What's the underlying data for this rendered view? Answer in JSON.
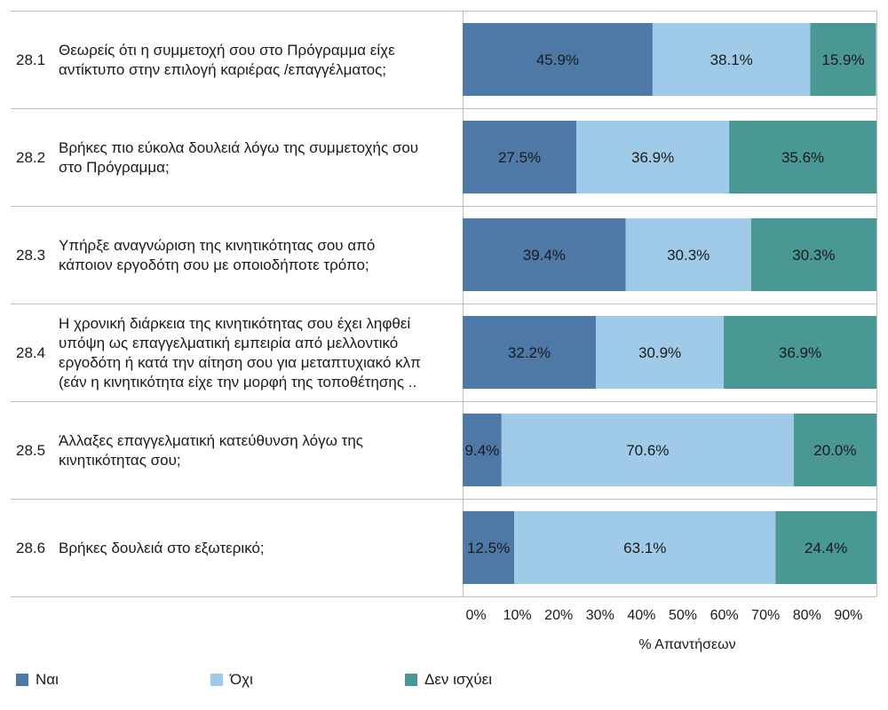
{
  "chart_data": {
    "type": "bar",
    "orientation": "horizontal",
    "stacked": true,
    "xlabel": "% Απαντήσεων",
    "xlim": [
      0,
      100
    ],
    "x_ticks": [
      "0%",
      "10%",
      "20%",
      "30%",
      "40%",
      "50%",
      "60%",
      "70%",
      "80%",
      "90%"
    ],
    "categories": [
      {
        "id": "28.1",
        "lines": [
          "Θεωρείς ότι η συμμετοχή σου στο Πρόγραμμα είχε",
          "αντίκτυπο στην επιλογή καριέρας /επαγγέλματος;"
        ]
      },
      {
        "id": "28.2",
        "lines": [
          "Βρήκες πιο εύκολα δουλειά λόγω της συμμετοχής σου",
          "στο Πρόγραμμα;"
        ]
      },
      {
        "id": "28.3",
        "lines": [
          "Υπήρξε αναγνώριση της κινητικότητας σου από",
          "κάποιον εργοδότη σου με οποιοδήποτε τρόπο;"
        ]
      },
      {
        "id": "28.4",
        "lines": [
          "Η χρονική διάρκεια της κινητικότητας σου έχει ληφθεί",
          "υπόψη ως επαγγελματική εμπειρία από μελλοντικό",
          "εργοδότη ή κατά την αίτηση σου για μεταπτυχιακό κλπ",
          "(εάν η κινητικότητα είχε την μορφή της τοποθέτησης .."
        ]
      },
      {
        "id": "28.5",
        "lines": [
          "Άλλαξες επαγγελματική κατεύθυνση λόγω της",
          "κινητικότητας σου;"
        ]
      },
      {
        "id": "28.6",
        "lines": [
          "Βρήκες δουλειά στο εξωτερικό;"
        ]
      }
    ],
    "series": [
      {
        "name": "Ναι",
        "color": "#4e79a7",
        "values": [
          45.9,
          27.5,
          39.4,
          32.2,
          9.4,
          12.5
        ],
        "labels": [
          "45.9%",
          "27.5%",
          "39.4%",
          "32.2%",
          "9.4%",
          "12.5%"
        ]
      },
      {
        "name": "Όχι",
        "color": "#a0cbe8",
        "values": [
          38.1,
          36.9,
          30.3,
          30.9,
          70.6,
          63.1
        ],
        "labels": [
          "38.1%",
          "36.9%",
          "30.3%",
          "30.9%",
          "70.6%",
          "63.1%"
        ]
      },
      {
        "name": "Δεν ισχύει",
        "color": "#499894",
        "values": [
          15.9,
          35.6,
          30.3,
          36.9,
          20.0,
          24.4
        ],
        "labels": [
          "15.9%",
          "35.6%",
          "30.3%",
          "36.9%",
          "20.0%",
          "24.4%"
        ]
      }
    ],
    "legend_position": "bottom"
  }
}
